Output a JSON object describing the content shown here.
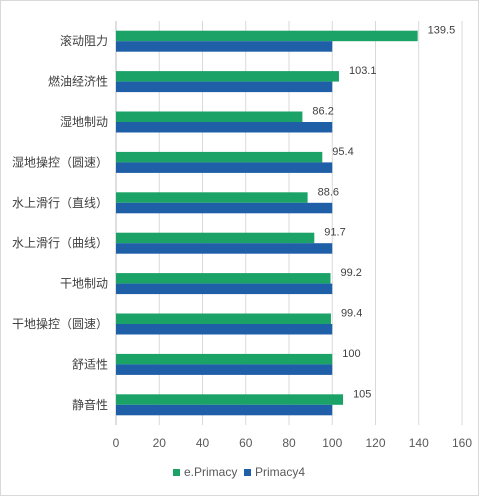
{
  "chart_data": {
    "type": "bar",
    "orientation": "horizontal",
    "categories": [
      "滚动阻力",
      "燃油经济性",
      "湿地制动",
      "湿地操控（圆速）",
      "水上滑行（直线）",
      "水上滑行（曲线）",
      "干地制动",
      "干地操控（圆速）",
      "舒适性",
      "静音性"
    ],
    "series": [
      {
        "name": "e.Primacy",
        "values": [
          139.5,
          103.1,
          86.2,
          95.4,
          88.6,
          91.7,
          99.2,
          99.4,
          100,
          105
        ],
        "color": "#1aa267",
        "data_labels": [
          "139.5",
          "103.1",
          "86.2",
          "95.4",
          "88.6",
          "91.7",
          "99.2",
          "99.4",
          "100",
          "105"
        ]
      },
      {
        "name": "Primacy4",
        "values": [
          100,
          100,
          100,
          100,
          100,
          100,
          100,
          100,
          100,
          100
        ],
        "color": "#1f5fa8"
      }
    ],
    "xlim": [
      0,
      160
    ],
    "xticks": [
      "0",
      "20",
      "40",
      "60",
      "80",
      "100",
      "120",
      "140",
      "160"
    ],
    "grid": true,
    "legend": "bottom"
  }
}
